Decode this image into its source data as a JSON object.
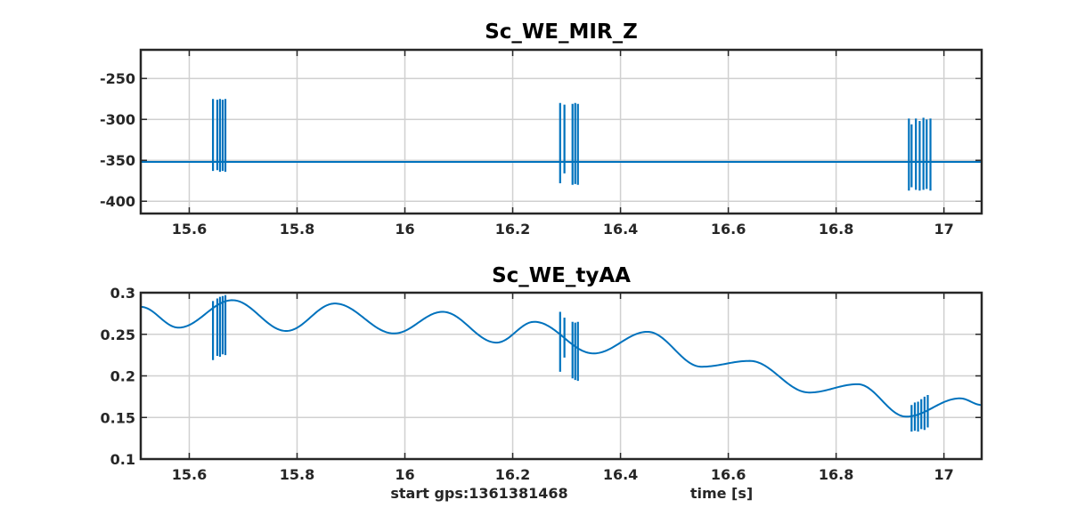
{
  "colors": {
    "series": "#0072bd",
    "axis": "#262626",
    "grid": "#d0d0d0"
  },
  "footer": {
    "start_label": "start gps:1361381468",
    "xlabel": "time [s]"
  },
  "chart_data": [
    {
      "type": "line",
      "title": "Sc_WE_MIR_Z",
      "xlabel": "",
      "ylabel": "",
      "xlim": [
        15.51,
        17.07
      ],
      "ylim": [
        -415,
        -215
      ],
      "xticks": [
        15.6,
        15.8,
        16,
        16.2,
        16.4,
        16.6,
        16.8,
        17
      ],
      "xtick_labels": [
        "15.6",
        "15.8",
        "16",
        "16.2",
        "16.4",
        "16.6",
        "16.8",
        "17"
      ],
      "yticks": [
        -250,
        -300,
        -350,
        -400
      ],
      "ytick_labels": [
        "-250",
        "-300",
        "-350",
        "-400"
      ],
      "grid": true,
      "series": [
        {
          "baseline": -352,
          "glitch_bursts": [
            {
              "x": [
                15.644,
                15.652,
                15.657,
                15.662,
                15.667
              ],
              "low": [
                -363,
                -362,
                -364,
                -363,
                -364
              ],
              "high": [
                -275,
                -276,
                -275,
                -276,
                -275
              ]
            },
            {
              "x": [
                16.288,
                16.296,
                16.311,
                16.316,
                16.321
              ],
              "low": [
                -378,
                -366,
                -380,
                -379,
                -380
              ],
              "high": [
                -280,
                -282,
                -281,
                -280,
                -281
              ]
            },
            {
              "x": [
                16.935,
                16.94,
                16.948,
                16.955,
                16.962,
                16.968,
                16.975
              ],
              "low": [
                -387,
                -383,
                -386,
                -387,
                -386,
                -385,
                -387
              ],
              "high": [
                -299,
                -306,
                -299,
                -302,
                -298,
                -300,
                -299
              ]
            }
          ]
        }
      ]
    },
    {
      "type": "line",
      "title": "Sc_WE_tyAA",
      "xlabel": "time [s]",
      "ylabel": "",
      "xlim": [
        15.51,
        17.07
      ],
      "ylim": [
        0.1,
        0.3
      ],
      "xticks": [
        15.6,
        15.8,
        16,
        16.2,
        16.4,
        16.6,
        16.8,
        17
      ],
      "xtick_labels": [
        "15.6",
        "15.8",
        "16",
        "16.2",
        "16.4",
        "16.6",
        "16.8",
        "17"
      ],
      "yticks": [
        0.3,
        0.25,
        0.2,
        0.15,
        0.1
      ],
      "ytick_labels": [
        "0.3",
        "0.25",
        "0.2",
        "0.15",
        "0.1"
      ],
      "grid": true,
      "series": [
        {
          "x": [
            15.51,
            15.58,
            15.68,
            15.78,
            15.87,
            15.98,
            16.07,
            16.17,
            16.24,
            16.35,
            16.45,
            16.55,
            16.64,
            16.75,
            16.84,
            16.93,
            17.03,
            17.07
          ],
          "y": [
            0.283,
            0.258,
            0.291,
            0.254,
            0.287,
            0.251,
            0.277,
            0.24,
            0.265,
            0.227,
            0.253,
            0.211,
            0.218,
            0.18,
            0.19,
            0.151,
            0.173,
            0.165
          ],
          "glitch_bursts": [
            {
              "x": [
                15.644,
                15.652,
                15.657,
                15.662,
                15.667
              ],
              "low": [
                0.219,
                0.224,
                0.223,
                0.226,
                0.225
              ],
              "high": [
                0.29,
                0.293,
                0.295,
                0.296,
                0.297
              ]
            },
            {
              "x": [
                16.288,
                16.296,
                16.311,
                16.316,
                16.321
              ],
              "low": [
                0.205,
                0.222,
                0.197,
                0.195,
                0.194
              ],
              "high": [
                0.277,
                0.27,
                0.265,
                0.264,
                0.265
              ]
            },
            {
              "x": [
                16.94,
                16.946,
                16.952,
                16.958,
                16.964,
                16.97
              ],
              "low": [
                0.133,
                0.134,
                0.133,
                0.136,
                0.135,
                0.138
              ],
              "high": [
                0.165,
                0.168,
                0.169,
                0.172,
                0.175,
                0.177
              ]
            }
          ]
        }
      ]
    }
  ]
}
